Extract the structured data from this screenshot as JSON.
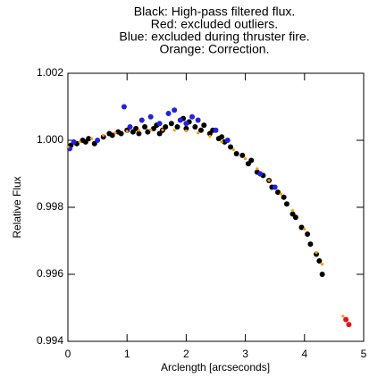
{
  "chart_data": {
    "type": "scatter",
    "title": [
      "Black: High-pass filtered flux.",
      "Red: excluded outliers.",
      "Blue: excluded during thruster fire.",
      "Orange: Correction."
    ],
    "x_label": "Arclength [arcseconds]",
    "y_label": "Relative Flux",
    "xlim": [
      0,
      5
    ],
    "xticks": [
      0,
      1,
      2,
      3,
      4,
      5
    ],
    "ylim": [
      0.994,
      1.002
    ],
    "yticks": [
      {
        "value": 0.994,
        "label": "0.994"
      },
      {
        "value": 0.996,
        "label": "0.996"
      },
      {
        "value": 0.998,
        "label": "0.998"
      },
      {
        "value": 1.0,
        "label": "1.000"
      },
      {
        "value": 1.002,
        "label": "1.002"
      }
    ],
    "series": [
      {
        "color": "#000000",
        "size": 3,
        "x": [
          0.05,
          0.15,
          0.25,
          0.3,
          0.35,
          0.45,
          0.6,
          0.7,
          0.75,
          0.85,
          0.9,
          1.0,
          1.1,
          1.15,
          1.2,
          1.3,
          1.35,
          1.45,
          1.5,
          1.55,
          1.6,
          1.65,
          1.75,
          1.85,
          1.95,
          2.0,
          2.05,
          2.15,
          2.25,
          2.3,
          2.4,
          2.45,
          2.55,
          2.6,
          2.65,
          2.75,
          2.85,
          2.95,
          3.05,
          3.1,
          3.2,
          3.3,
          3.4,
          3.45,
          3.55,
          3.65,
          3.7,
          3.8,
          3.85,
          3.95,
          4.05,
          4.1,
          4.2,
          4.25,
          4.3
        ],
        "values": [
          0.99985,
          0.9999,
          1.0,
          0.99995,
          1.00005,
          0.9999,
          1.0001,
          1.0002,
          1.00015,
          1.00025,
          1.0002,
          1.0003,
          1.00025,
          1.00035,
          1.0002,
          1.0004,
          1.00025,
          1.00035,
          1.00045,
          1.0002,
          1.0003,
          1.0004,
          1.0005,
          1.0004,
          1.00065,
          1.00035,
          1.00055,
          1.0004,
          1.0003,
          1.00045,
          1.0002,
          1.0003,
          1.00005,
          1.0001,
          0.99995,
          0.9998,
          0.9996,
          0.99955,
          0.9993,
          0.9994,
          0.99905,
          0.99895,
          0.9988,
          0.9986,
          0.99845,
          0.9983,
          0.9981,
          0.9978,
          0.9977,
          0.9974,
          0.9972,
          0.9969,
          0.9966,
          0.9964,
          0.996
        ]
      },
      {
        "color": "#2222dd",
        "size": 3,
        "x": [
          0.03,
          0.1,
          0.5,
          0.95,
          1.05,
          1.25,
          1.4,
          1.55,
          1.7,
          1.8,
          1.9,
          2.0,
          2.1,
          2.2,
          2.5,
          2.7,
          3.25,
          3.5
        ],
        "values": [
          0.99975,
          0.99995,
          1.0,
          1.001,
          1.0004,
          1.0006,
          1.0007,
          1.0005,
          1.0008,
          1.0009,
          1.0006,
          1.0005,
          1.0007,
          1.0006,
          1.0003,
          1.0,
          0.999,
          0.9986
        ]
      },
      {
        "color": "#ff9900",
        "size": 1.6,
        "x": [
          0.0,
          0.2,
          0.4,
          0.6,
          0.8,
          1.0,
          1.2,
          1.4,
          1.6,
          1.8,
          2.0,
          2.2,
          2.4,
          2.6,
          2.8,
          3.0,
          3.2,
          3.4,
          3.6,
          3.8,
          4.0,
          4.2,
          4.3,
          4.65
        ],
        "values": [
          0.9998,
          0.99995,
          1.00005,
          1.00015,
          1.00022,
          1.00027,
          1.0003,
          1.00031,
          1.00031,
          1.0003,
          1.00028,
          1.00022,
          1.00012,
          0.99995,
          0.99972,
          0.99945,
          0.99915,
          0.9988,
          0.9984,
          0.9979,
          0.99735,
          0.99665,
          0.9963,
          0.99475
        ]
      },
      {
        "color": "#ee1111",
        "size": 3,
        "x": [
          4.7,
          4.75
        ],
        "values": [
          0.99465,
          0.9945
        ]
      }
    ]
  }
}
